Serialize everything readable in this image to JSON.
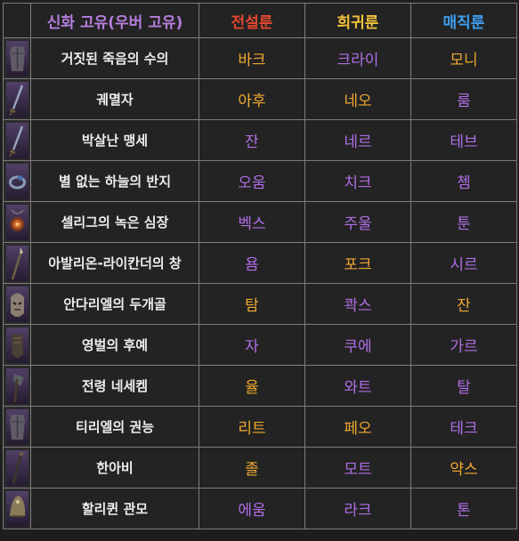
{
  "header": {
    "item": "신화 고유(우버 고유)",
    "legendary": "전설룬",
    "rare": "희귀룬",
    "magic": "매직룬"
  },
  "colors": {
    "header_item": "#b57edc",
    "header_legendary": "#e2482f",
    "header_rare": "#f2c23a",
    "header_magic": "#3ea0ef",
    "rune_orange": "#f0a830",
    "rune_purple": "#b06ee6"
  },
  "rows": [
    {
      "name": "거짓된 죽음의 수의",
      "icon": "armor-icon",
      "legendary": "바크",
      "legendary_color": "orange",
      "rare": "크라이",
      "rare_color": "purple",
      "magic": "모니",
      "magic_color": "orange"
    },
    {
      "name": "궤멸자",
      "icon": "sword-icon",
      "legendary": "아후",
      "legendary_color": "orange",
      "rare": "네오",
      "rare_color": "orange",
      "magic": "룸",
      "magic_color": "purple"
    },
    {
      "name": "박살난 맹세",
      "icon": "sword-icon",
      "legendary": "잔",
      "legendary_color": "purple",
      "rare": "네르",
      "rare_color": "purple",
      "magic": "테브",
      "magic_color": "purple"
    },
    {
      "name": "별 없는 하늘의 반지",
      "icon": "ring-icon",
      "legendary": "오움",
      "legendary_color": "purple",
      "rare": "치크",
      "rare_color": "purple",
      "magic": "쳄",
      "magic_color": "purple"
    },
    {
      "name": "셀리그의 녹은 심장",
      "icon": "amulet-icon",
      "legendary": "벡스",
      "legendary_color": "purple",
      "rare": "주울",
      "rare_color": "purple",
      "magic": "툰",
      "magic_color": "purple"
    },
    {
      "name": "아발리온-라이칸더의 창",
      "icon": "spear-icon",
      "legendary": "욤",
      "legendary_color": "purple",
      "rare": "포크",
      "rare_color": "orange",
      "magic": "시르",
      "magic_color": "purple"
    },
    {
      "name": "안다리엘의 두개골",
      "icon": "helmet-icon",
      "legendary": "탐",
      "legendary_color": "orange",
      "rare": "콱스",
      "rare_color": "purple",
      "magic": "잔",
      "magic_color": "orange"
    },
    {
      "name": "영벌의 후예",
      "icon": "gloves-icon",
      "legendary": "자",
      "legendary_color": "purple",
      "rare": "쿠에",
      "rare_color": "purple",
      "magic": "가르",
      "magic_color": "purple"
    },
    {
      "name": "전령 네세켐",
      "icon": "axe-icon",
      "legendary": "율",
      "legendary_color": "orange",
      "rare": "와트",
      "rare_color": "purple",
      "magic": "탈",
      "magic_color": "purple"
    },
    {
      "name": "티리엘의 권능",
      "icon": "armor-icon",
      "legendary": "리트",
      "legendary_color": "orange",
      "rare": "페오",
      "rare_color": "orange",
      "magic": "테크",
      "magic_color": "purple"
    },
    {
      "name": "한아비",
      "icon": "staff-icon",
      "legendary": "졸",
      "legendary_color": "orange",
      "rare": "모트",
      "rare_color": "purple",
      "magic": "약스",
      "magic_color": "orange"
    },
    {
      "name": "할리퀸 관모",
      "icon": "cap-icon",
      "legendary": "에움",
      "legendary_color": "purple",
      "rare": "라크",
      "rare_color": "purple",
      "magic": "톤",
      "magic_color": "purple"
    }
  ]
}
